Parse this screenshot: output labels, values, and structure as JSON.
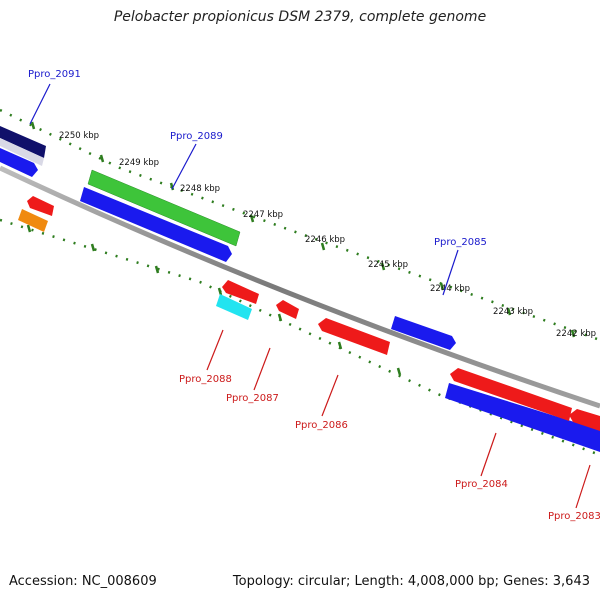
{
  "title": "Pelobacter propionicus DSM 2379, complete genome",
  "footer": {
    "accession": "Accession: NC_008609",
    "summary": "Topology: circular; Length: 4,008,000 bp; Genes: 3,643"
  },
  "ticks": [
    "2250 kbp",
    "2249 kbp",
    "2248 kbp",
    "2247 kbp",
    "2246 kbp",
    "2245 kbp",
    "2244 kbp",
    "2243 kbp",
    "2242 kbp"
  ],
  "genes": {
    "forward": [
      "Ppro_2091",
      "Ppro_2089",
      "Ppro_2085"
    ],
    "reverse": [
      "Ppro_2088",
      "Ppro_2087",
      "Ppro_2086",
      "Ppro_2084",
      "Ppro_2083"
    ]
  },
  "colors": {
    "forward_label": "#1a1acc",
    "reverse_label": "#cc1a1a",
    "tick": "#2e7d1f",
    "backbone": "#808080",
    "blue": "#1a1aee",
    "navy": "#10106a",
    "green": "#3ec43a",
    "red": "#ee1a1a",
    "cyan": "#22e4f0",
    "orange": "#f08a10"
  }
}
